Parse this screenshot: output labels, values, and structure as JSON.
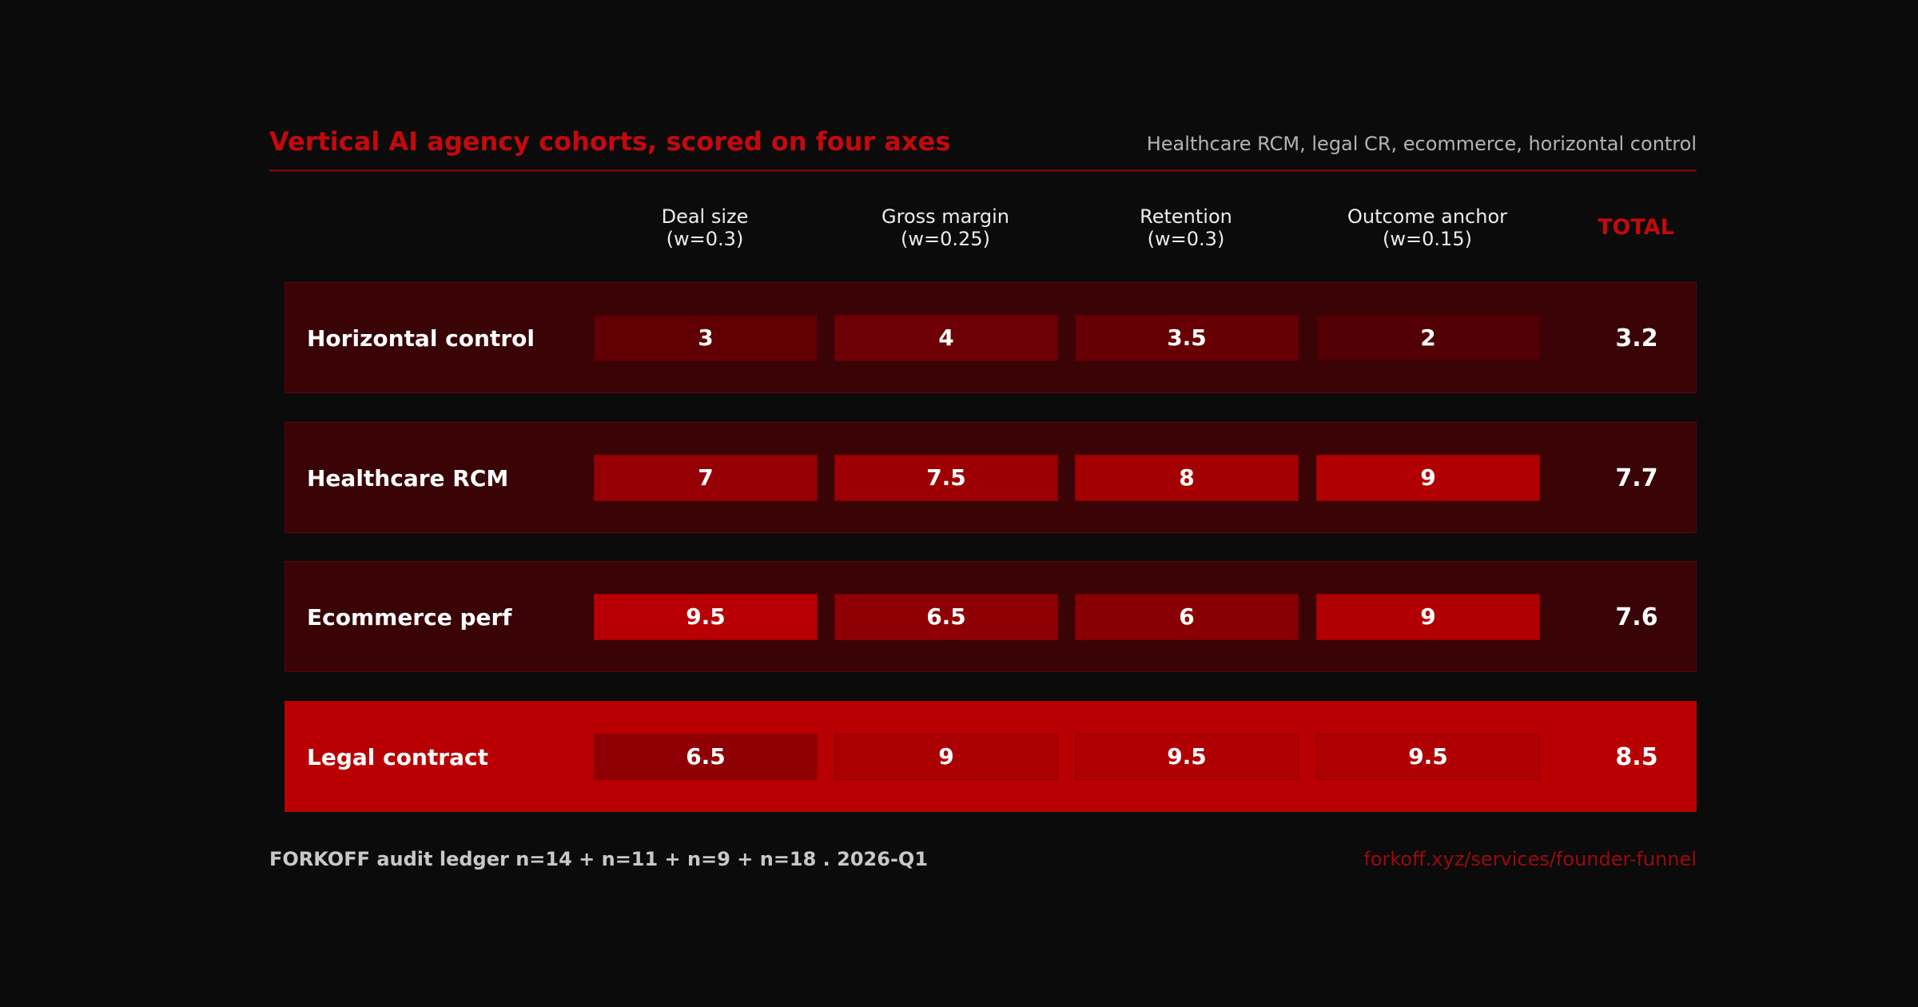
{
  "header": {
    "title": "Vertical AI agency cohorts, scored on four axes",
    "subtitle": "Healthcare RCM, legal CR, ecommerce, horizontal control"
  },
  "footer": {
    "left": "FORKOFF audit ledger n=14 + n=11 + n=9 + n=18 . 2026-Q1",
    "right": "forkoff.xyz/services/founder-funnel"
  },
  "colors": {
    "accent": "#c4090d",
    "background": "#0b0b0b",
    "row_background": "#3a0306",
    "highlight_row": "#b80003"
  },
  "chart_data": {
    "type": "heatmap",
    "title": "Vertical AI agency cohorts, scored on four axes",
    "subtitle": "Healthcare RCM, legal CR, ecommerce, horizontal control",
    "columns": [
      {
        "name": "Deal size",
        "weight": "(w=0.3)"
      },
      {
        "name": "Gross margin",
        "weight": "(w=0.25)"
      },
      {
        "name": "Retention",
        "weight": "(w=0.3)"
      },
      {
        "name": "Outcome anchor",
        "weight": "(w=0.15)"
      }
    ],
    "total_label": "TOTAL",
    "rows": [
      {
        "label": "Horizontal control",
        "scores": [
          "3",
          "4",
          "3.5",
          "2"
        ],
        "values": [
          3,
          4,
          3.5,
          2
        ],
        "total": "3.2",
        "highlight": false
      },
      {
        "label": "Healthcare RCM",
        "scores": [
          "7",
          "7.5",
          "8",
          "9"
        ],
        "values": [
          7,
          7.5,
          8,
          9
        ],
        "total": "7.7",
        "highlight": false
      },
      {
        "label": "Ecommerce perf",
        "scores": [
          "9.5",
          "6.5",
          "6",
          "9"
        ],
        "values": [
          9.5,
          6.5,
          6,
          9
        ],
        "total": "7.6",
        "highlight": false
      },
      {
        "label": "Legal contract",
        "scores": [
          "6.5",
          "9",
          "9.5",
          "9.5"
        ],
        "values": [
          6.5,
          9,
          9.5,
          9.5
        ],
        "total": "8.5",
        "highlight": true
      }
    ],
    "scale": [
      0,
      10
    ]
  }
}
